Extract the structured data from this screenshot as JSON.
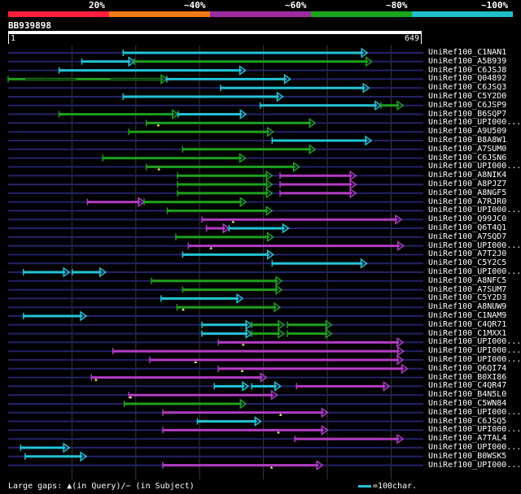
{
  "legend": {
    "bands": [
      {
        "label": "20%",
        "color": "#ff1f3a"
      },
      {
        "label": "~40%",
        "color": "#f07a14"
      },
      {
        "label": "~60%",
        "color": "#9c2ba0"
      },
      {
        "label": "~80%",
        "color": "#1aa51c"
      },
      {
        "label": "~100%",
        "color": "#1fbfcc"
      }
    ]
  },
  "query": {
    "name": "BB939898",
    "start_label": "1",
    "end_label": "649",
    "length": 649
  },
  "colors": {
    "c": "#22c4d6",
    "g": "#1ea11e",
    "p": "#b23cc4",
    "axis": "#23236a",
    "grid": "#3a3a3a",
    "gap": "#f3ef6d"
  },
  "hits": [
    {
      "name": "UniRef100_C1NAN1",
      "segs": [
        [
          "c",
          203,
          634
        ]
      ]
    },
    {
      "name": "UniRef100_A5B939",
      "segs": [
        [
          "c",
          130,
          223
        ],
        [
          "g",
          223,
          642
        ]
      ]
    },
    {
      "name": "UniRef100_C6JSJ8",
      "segs": [
        [
          "c",
          90,
          419
        ]
      ]
    },
    {
      "name": "UniRef100_Q04892",
      "segs": [
        [
          "g",
          0,
          280,
          "g",
          [
            [
              30,
              70
            ],
            [
              65,
              120
            ],
            [
              180,
              270
            ]
          ]
        ],
        [
          "c",
          280,
          498
        ]
      ]
    },
    {
      "name": "UniRef100_C6JSQ3",
      "segs": [
        [
          "c",
          375,
          637
        ]
      ]
    },
    {
      "name": "UniRef100_C5Y2D0",
      "segs": [
        [
          "c",
          203,
          485
        ]
      ]
    },
    {
      "name": "UniRef100_C6JSP9",
      "segs": [
        [
          "c",
          445,
          658
        ],
        [
          "g",
          658,
          697
        ]
      ]
    },
    {
      "name": "UniRef100_B6SQP7",
      "segs": [
        [
          "g",
          90,
          300
        ],
        [
          "c",
          300,
          420
        ]
      ]
    },
    {
      "name": "UniRef100_UPI000...",
      "segs": [
        [
          "g",
          244,
          542
        ]
      ],
      "gaps": [
        265
      ]
    },
    {
      "name": "UniRef100_A9U509",
      "segs": [
        [
          "g",
          213,
          468
        ]
      ]
    },
    {
      "name": "UniRef100_B8A8W1",
      "segs": [
        [
          "c",
          466,
          641
        ]
      ]
    },
    {
      "name": "UniRef100_A7SUM0",
      "segs": [
        [
          "g",
          308,
          542
        ]
      ]
    },
    {
      "name": "UniRef100_C6JSN6",
      "segs": [
        [
          "g",
          167,
          419
        ]
      ]
    },
    {
      "name": "UniRef100_UPI000...",
      "segs": [
        [
          "g",
          244,
          514
        ]
      ],
      "gaps": [
        266
      ]
    },
    {
      "name": "UniRef100_A8NIK4",
      "segs": [
        [
          "g",
          299,
          466
        ],
        [
          "p",
          480,
          614
        ]
      ]
    },
    {
      "name": "UniRef100_A8PJZ7",
      "segs": [
        [
          "g",
          299,
          466
        ],
        [
          "p",
          480,
          614
        ]
      ]
    },
    {
      "name": "UniRef100_A8NGF5",
      "segs": [
        [
          "g",
          299,
          466
        ],
        [
          "p",
          480,
          614
        ]
      ]
    },
    {
      "name": "UniRef100_A7RJR0",
      "segs": [
        [
          "p",
          140,
          240
        ],
        [
          "g",
          240,
          420
        ]
      ]
    },
    {
      "name": "UniRef100_UPI000...",
      "segs": [
        [
          "g",
          281,
          466
        ]
      ]
    },
    {
      "name": "UniRef100_Q99JC0",
      "segs": [
        [
          "p",
          342,
          694
        ]
      ],
      "gaps": [
        397
      ]
    },
    {
      "name": "UniRef100_Q6T4Q1",
      "segs": [
        [
          "p",
          350,
          390
        ],
        [
          "c",
          390,
          495
        ]
      ]
    },
    {
      "name": "UniRef100_A7SQD7",
      "segs": [
        [
          "g",
          296,
          468
        ]
      ]
    },
    {
      "name": "UniRef100_UPI000...",
      "segs": [
        [
          "p",
          318,
          698
        ]
      ],
      "gaps": [
        358
      ]
    },
    {
      "name": "UniRef100_A7T2J0",
      "segs": [
        [
          "c",
          308,
          468
        ]
      ]
    },
    {
      "name": "UniRef100_C5Y2C5",
      "segs": [
        [
          "c",
          466,
          633
        ]
      ]
    },
    {
      "name": "UniRef100_UPI000...",
      "segs": [
        [
          "c",
          27,
          108
        ],
        [
          "c",
          113,
          172
        ]
      ]
    },
    {
      "name": "UniRef100_A8NFC5",
      "segs": [
        [
          "g",
          253,
          483
        ]
      ]
    },
    {
      "name": "UniRef100_A7SUM7",
      "segs": [
        [
          "g",
          308,
          483
        ]
      ]
    },
    {
      "name": "UniRef100_C5Y2D3",
      "segs": [
        [
          "c",
          270,
          414
        ]
      ]
    },
    {
      "name": "UniRef100_A8NUW9",
      "segs": [
        [
          "g",
          298,
          480
        ]
      ],
      "gaps": [
        309
      ]
    },
    {
      "name": "UniRef100_C1NAM9",
      "segs": [
        [
          "c",
          27,
          138
        ]
      ]
    },
    {
      "name": "UniRef100_C4QR71",
      "segs": [
        [
          "c",
          342,
          430
        ],
        [
          "g",
          430,
          487
        ],
        [
          "g",
          493,
          571
        ]
      ]
    },
    {
      "name": "UniRef100_C1MXX1",
      "segs": [
        [
          "c",
          342,
          430
        ],
        [
          "g",
          430,
          487
        ],
        [
          "g",
          493,
          571
        ]
      ]
    },
    {
      "name": "UniRef100_UPI000...",
      "segs": [
        [
          "p",
          371,
          697
        ]
      ],
      "gaps": [
        415
      ]
    },
    {
      "name": "UniRef100_UPI000...",
      "segs": [
        [
          "p",
          185,
          698
        ]
      ],
      "gaps": []
    },
    {
      "name": "UniRef100_UPI000...",
      "segs": [
        [
          "p",
          250,
          697
        ]
      ],
      "gaps": [
        331
      ]
    },
    {
      "name": "UniRef100_Q6QI74",
      "segs": [
        [
          "p",
          371,
          705
        ]
      ],
      "gaps": [
        413
      ]
    },
    {
      "name": "UniRef100_B0XI86",
      "segs": [
        [
          "p",
          147,
          456
        ]
      ],
      "gaps": [
        155
      ]
    },
    {
      "name": "UniRef100_C4QR47",
      "segs": [
        [
          "c",
          364,
          424
        ],
        [
          "c",
          430,
          481
        ],
        [
          "p",
          509,
          673
        ]
      ]
    },
    {
      "name": "UniRef100_B4N5L0",
      "segs": [
        [
          "p",
          213,
          475
        ]
      ],
      "gaps": [
        216
      ]
    },
    {
      "name": "UniRef100_C5WN84",
      "segs": [
        [
          "g",
          205,
          420
        ]
      ]
    },
    {
      "name": "UniRef100_UPI000...",
      "segs": [
        [
          "p",
          273,
          564
        ]
      ],
      "gaps": [
        481
      ]
    },
    {
      "name": "UniRef100_C6JSQ5",
      "segs": [
        [
          "c",
          334,
          446
        ]
      ]
    },
    {
      "name": "UniRef100_UPI000...",
      "segs": [
        [
          "p",
          273,
          564
        ]
      ],
      "gaps": [
        477
      ]
    },
    {
      "name": "UniRef100_A7TAL4",
      "segs": [
        [
          "p",
          506,
          697
        ]
      ]
    },
    {
      "name": "UniRef100_UPI000...",
      "segs": [
        [
          "c",
          22,
          108
        ]
      ]
    },
    {
      "name": "UniRef100_B0WSK5",
      "segs": [
        [
          "c",
          30,
          138
        ]
      ]
    },
    {
      "name": "UniRef100_UPI000...",
      "segs": [
        [
          "p",
          273,
          555
        ]
      ],
      "gaps": [
        465
      ]
    }
  ],
  "footer": {
    "text": "Large gaps: ▲(in Query)/− (in Subject)",
    "scale_text": "=100char."
  }
}
